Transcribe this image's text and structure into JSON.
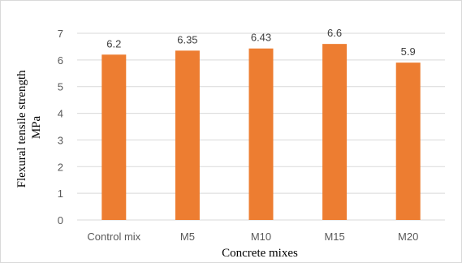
{
  "chart_data": {
    "type": "bar",
    "categories": [
      "Control mix",
      "M5",
      "M10",
      "M15",
      "M20"
    ],
    "values": [
      6.2,
      6.35,
      6.43,
      6.6,
      5.9
    ],
    "data_labels": [
      "6.2",
      "6.35",
      "6.43",
      "6.6",
      "5.9"
    ],
    "title": "",
    "xlabel": "Concrete mixes",
    "ylabel_lines": [
      "Flexural tensile strength",
      "MPa"
    ],
    "ylim": [
      0,
      7
    ],
    "yticks": [
      0,
      1,
      2,
      3,
      4,
      5,
      6,
      7
    ],
    "grid": true,
    "bar_color": "#ED7D31",
    "grid_color": "#d9d9d9"
  }
}
